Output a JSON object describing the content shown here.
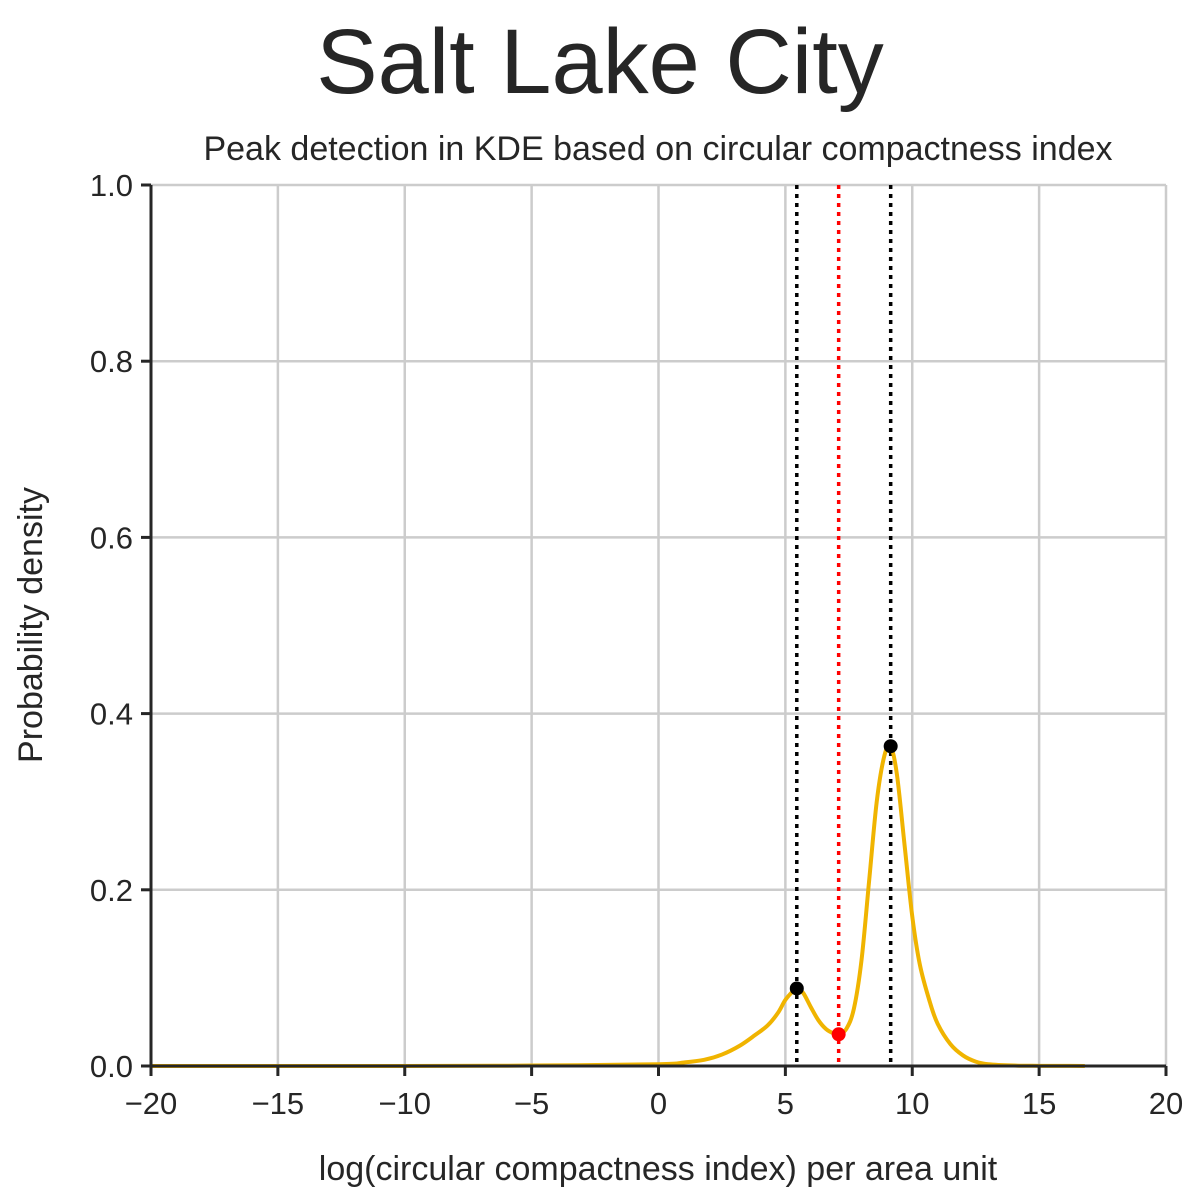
{
  "chart_data": {
    "type": "line",
    "suptitle": "Salt Lake City",
    "title": "Peak detection in KDE based on circular compactness index",
    "xlabel": "log(circular compactness index) per area unit",
    "ylabel": "Probability density",
    "xlim": [
      -20,
      20
    ],
    "ylim": [
      0,
      1.0
    ],
    "grid": true,
    "x_ticks": [
      -20,
      -15,
      -10,
      -5,
      0,
      5,
      10,
      15,
      20
    ],
    "x_tick_labels": [
      "−20",
      "−15",
      "−10",
      "−5",
      "0",
      "5",
      "10",
      "15",
      "20"
    ],
    "y_ticks": [
      0.0,
      0.2,
      0.4,
      0.6,
      0.8,
      1.0
    ],
    "y_tick_labels": [
      "0.0",
      "0.2",
      "0.4",
      "0.6",
      "0.8",
      "1.0"
    ],
    "series": [
      {
        "color": "#f0b400",
        "x": [
          -20,
          -10,
          -5,
          0,
          1,
          1.8,
          2.5,
          3.2,
          3.8,
          4.3,
          4.7,
          5.0,
          5.3,
          5.45,
          5.7,
          6.0,
          6.3,
          6.6,
          6.9,
          7.1,
          7.4,
          7.7,
          8.0,
          8.3,
          8.6,
          8.9,
          9.15,
          9.4,
          9.7,
          10.0,
          10.3,
          10.7,
          11.0,
          11.5,
          12.0,
          12.5,
          13.0,
          14.0,
          15.0,
          16.0,
          16.8
        ],
        "y": [
          0.0,
          0.0,
          0.0005,
          0.002,
          0.004,
          0.007,
          0.013,
          0.023,
          0.035,
          0.046,
          0.06,
          0.075,
          0.085,
          0.088,
          0.083,
          0.067,
          0.052,
          0.042,
          0.037,
          0.036,
          0.042,
          0.065,
          0.12,
          0.21,
          0.3,
          0.352,
          0.363,
          0.33,
          0.25,
          0.17,
          0.115,
          0.072,
          0.048,
          0.025,
          0.012,
          0.005,
          0.002,
          0.0005,
          0.0002,
          0.0001,
          0.0
        ]
      }
    ],
    "vlines": [
      {
        "x": 5.45,
        "color": "#000000"
      },
      {
        "x": 7.1,
        "color": "#ff0000"
      },
      {
        "x": 9.15,
        "color": "#000000"
      }
    ],
    "markers": [
      {
        "x": 5.45,
        "y": 0.088,
        "color": "#000000"
      },
      {
        "x": 7.1,
        "y": 0.036,
        "color": "#ff0000"
      },
      {
        "x": 9.15,
        "y": 0.363,
        "color": "#000000"
      }
    ]
  }
}
